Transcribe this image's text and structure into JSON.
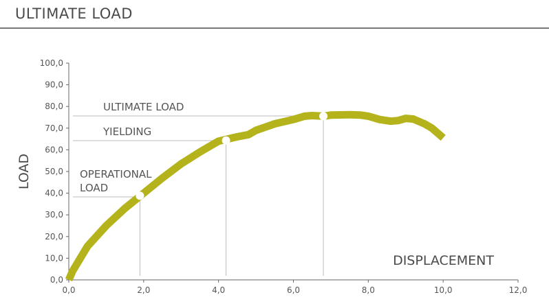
{
  "page": {
    "title": "ULTIMATE LOAD"
  },
  "chart_data": {
    "type": "line",
    "title": "",
    "xlabel": "DISPLACEMENT",
    "ylabel": "LOAD",
    "xlim": [
      0,
      12
    ],
    "ylim": [
      0,
      100
    ],
    "x_ticks": [
      "0,0",
      "2,0",
      "4,0",
      "6,0",
      "8,0",
      "10,0",
      "12,0"
    ],
    "y_ticks": [
      "0,0",
      "10,0",
      "20,0",
      "30,0",
      "40,0",
      "50,0",
      "60,0",
      "70,0",
      "80,0",
      "90,0",
      "100,0"
    ],
    "grid": false,
    "series": [
      {
        "color": "#b5b31c",
        "x": [
          0.0,
          0.1,
          0.5,
          1.0,
          1.5,
          2.0,
          2.5,
          3.0,
          3.5,
          4.0,
          4.5,
          4.8,
          5.0,
          5.5,
          6.0,
          6.3,
          6.5,
          6.8,
          7.0,
          7.5,
          7.8,
          8.0,
          8.3,
          8.6,
          8.8,
          9.0,
          9.2,
          9.5,
          9.7,
          10.0
        ],
        "y": [
          0.0,
          4.0,
          15.5,
          25.0,
          33.0,
          40.0,
          47.0,
          53.5,
          59.0,
          64.0,
          66.0,
          67.0,
          69.0,
          72.0,
          74.0,
          75.5,
          75.8,
          75.5,
          76.0,
          76.2,
          76.0,
          75.5,
          74.0,
          73.2,
          73.5,
          74.5,
          74.2,
          72.0,
          70.0,
          65.5
        ]
      }
    ],
    "annotations": [
      {
        "label": "OPERATIONAL",
        "label2": "LOAD",
        "x": 1.9,
        "y": 38.8
      },
      {
        "label": "YIELDING",
        "x": 4.2,
        "y": 64.3
      },
      {
        "label": "ULTIMATE LOAD",
        "x": 6.8,
        "y": 75.5
      }
    ]
  }
}
